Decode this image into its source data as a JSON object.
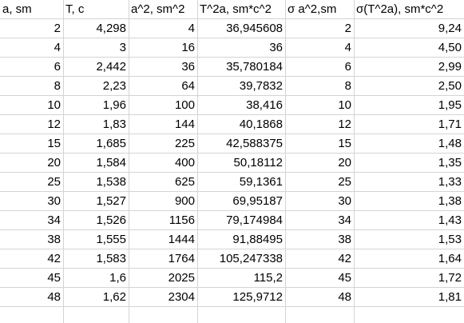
{
  "sheet": {
    "headers": [
      "a, sm",
      "T, c",
      "a^2, sm^2",
      "T^2a, sm*c^2",
      "σ a^2,sm",
      "σ(T^2a), sm*c^2"
    ],
    "rows": [
      [
        "2",
        "4,298",
        "4",
        "36,945608",
        "2",
        "9,24"
      ],
      [
        "4",
        "3",
        "16",
        "36",
        "4",
        "4,50"
      ],
      [
        "6",
        "2,442",
        "36",
        "35,780184",
        "6",
        "2,99"
      ],
      [
        "8",
        "2,23",
        "64",
        "39,7832",
        "8",
        "2,50"
      ],
      [
        "10",
        "1,96",
        "100",
        "38,416",
        "10",
        "1,95"
      ],
      [
        "12",
        "1,83",
        "144",
        "40,1868",
        "12",
        "1,71"
      ],
      [
        "15",
        "1,685",
        "225",
        "42,588375",
        "15",
        "1,48"
      ],
      [
        "20",
        "1,584",
        "400",
        "50,18112",
        "20",
        "1,35"
      ],
      [
        "25",
        "1,538",
        "625",
        "59,1361",
        "25",
        "1,33"
      ],
      [
        "30",
        "1,527",
        "900",
        "69,95187",
        "30",
        "1,38"
      ],
      [
        "34",
        "1,526",
        "1156",
        "79,174984",
        "34",
        "1,43"
      ],
      [
        "38",
        "1,555",
        "1444",
        "91,88495",
        "38",
        "1,53"
      ],
      [
        "42",
        "1,583",
        "1764",
        "105,247338",
        "42",
        "1,64"
      ],
      [
        "45",
        "1,6",
        "2025",
        "115,2",
        "45",
        "1,72"
      ],
      [
        "48",
        "1,62",
        "2304",
        "125,9712",
        "48",
        "1,81"
      ]
    ]
  },
  "colors": {
    "gridline": "#d4d4d4",
    "text": "#000000",
    "background": "#ffffff"
  }
}
